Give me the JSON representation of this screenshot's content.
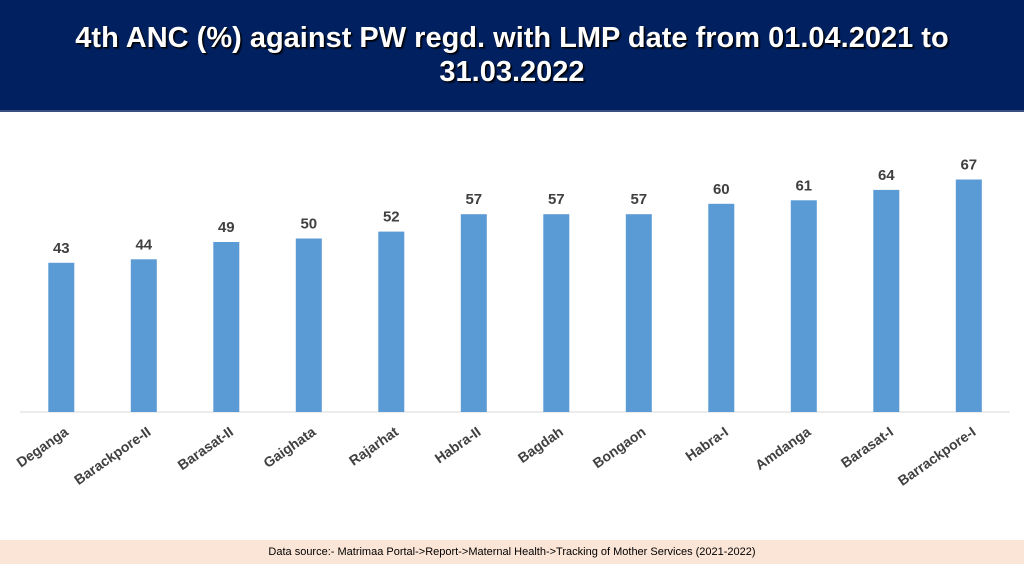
{
  "header": {
    "title": "4th ANC (%) against PW regd. with LMP date from 01.04.2021 to 31.03.2022"
  },
  "footer": {
    "source": "Data source:- Matrimaa Portal->Report->Maternal Health->Tracking of Mother Services (2021-2022)"
  },
  "colors": {
    "banner": "#002060",
    "bar": "#5b9bd5",
    "label": "#404040",
    "footer_bg": "#fbe5d6"
  },
  "chart_data": {
    "type": "bar",
    "title": "4th ANC (%) against PW regd. with LMP date from 01.04.2021 to 31.03.2022",
    "xlabel": "",
    "ylabel": "",
    "categories": [
      "Deganga",
      "Barackpore-II",
      "Barasat-II",
      "Gaighata",
      "Rajarhat",
      "Habra-II",
      "Bagdah",
      "Bongaon",
      "Habra-I",
      "Amdanga",
      "Barasat-I",
      "Barrackpore-I"
    ],
    "values": [
      43,
      44,
      49,
      50,
      52,
      57,
      57,
      57,
      60,
      61,
      64,
      67
    ],
    "ylim": [
      0,
      75
    ],
    "grid": false,
    "legend": "none",
    "data_labels": true
  }
}
